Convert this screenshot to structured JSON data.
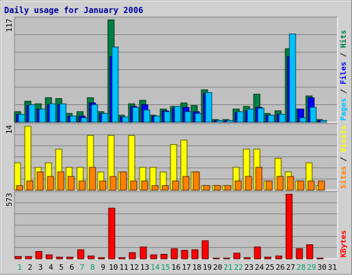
{
  "chart_data": [
    {
      "type": "bar",
      "title": "Daily usage for January 2006",
      "ymax_label": "117",
      "ylim": [
        0,
        117
      ],
      "categories": [
        "1",
        "2",
        "3",
        "4",
        "5",
        "6",
        "7",
        "8",
        "9",
        "10",
        "11",
        "12",
        "13",
        "14",
        "15",
        "16",
        "17",
        "18",
        "19",
        "20",
        "21",
        "22",
        "23",
        "24",
        "25",
        "26",
        "27",
        "28",
        "29",
        "30",
        "31"
      ],
      "weekend_days": [
        "1",
        "7",
        "8",
        "14",
        "15",
        "21",
        "22",
        "28",
        "29"
      ],
      "axis_label_parts": [
        {
          "text": "Pages",
          "color": "#00c0ff"
        },
        {
          "text": " / ",
          "color": "#000000"
        },
        {
          "text": "Files",
          "color": "#0000ff"
        },
        {
          "text": " / ",
          "color": "#000000"
        },
        {
          "text": "Hits",
          "color": "#008040"
        }
      ],
      "series": [
        {
          "name": "Hits",
          "color": "#008040",
          "values": [
            12,
            24,
            21,
            28,
            27,
            10,
            12,
            28,
            12,
            117,
            8,
            21,
            25,
            8,
            15,
            18,
            22,
            19,
            37,
            3,
            3,
            15,
            18,
            32,
            10,
            13,
            84,
            15,
            30,
            3,
            0
          ]
        },
        {
          "name": "Files",
          "color": "#0000ff",
          "values": [
            9,
            19,
            15,
            20,
            20,
            7,
            7,
            22,
            10,
            75,
            6,
            18,
            20,
            7,
            13,
            16,
            17,
            12,
            33,
            2,
            2,
            11,
            13,
            17,
            8,
            9,
            75,
            15,
            28,
            2,
            0
          ]
        },
        {
          "name": "Pages",
          "color": "#00c0ff",
          "values": [
            9,
            20,
            15,
            21,
            21,
            7,
            5,
            20,
            10,
            86,
            6,
            17,
            14,
            7,
            12,
            18,
            12,
            10,
            34,
            2,
            2,
            12,
            15,
            16,
            8,
            9,
            101,
            5,
            17,
            2,
            0
          ]
        }
      ]
    },
    {
      "type": "bar",
      "ymax_label": "14",
      "ylim": [
        0,
        14
      ],
      "axis_label_parts": [
        {
          "text": "Sites",
          "color": "#ff8000"
        },
        {
          "text": " / ",
          "color": "#000000"
        },
        {
          "text": "Visits",
          "color": "#ffff00"
        }
      ],
      "series": [
        {
          "name": "Visits",
          "color": "#ffff00",
          "values": [
            6,
            14,
            5,
            6,
            9,
            5,
            5,
            12,
            4,
            12,
            4,
            12,
            5,
            5,
            4,
            10,
            11,
            4,
            1,
            1,
            1,
            5,
            9,
            9,
            2,
            7,
            4,
            2,
            6,
            1,
            0
          ]
        },
        {
          "name": "Sites",
          "color": "#ff8000",
          "values": [
            1,
            2,
            4,
            3,
            4,
            3,
            2,
            5,
            2,
            3,
            4,
            2,
            2,
            1,
            1,
            2,
            3,
            4,
            1,
            1,
            1,
            2,
            3,
            5,
            2,
            3,
            3,
            2,
            2,
            2,
            0
          ]
        }
      ]
    },
    {
      "type": "bar",
      "ymax_label": "573",
      "ylim": [
        0,
        573
      ],
      "axis_label_parts": [
        {
          "text": "KBytes",
          "color": "#ff0000"
        }
      ],
      "series": [
        {
          "name": "KBytes",
          "color": "#ff0000",
          "values": [
            20,
            20,
            65,
            35,
            15,
            15,
            80,
            25,
            10,
            450,
            10,
            55,
            105,
            35,
            40,
            90,
            75,
            80,
            160,
            5,
            5,
            50,
            10,
            105,
            15,
            25,
            573,
            90,
            125,
            5,
            0
          ]
        }
      ]
    }
  ]
}
